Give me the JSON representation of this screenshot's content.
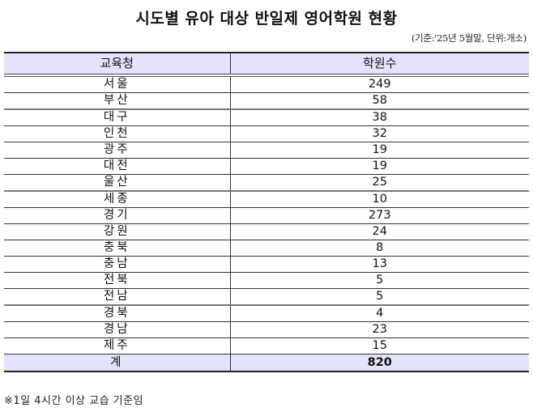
{
  "title": "시도별 유아 대상 반일제 영어학원 현황",
  "subtitle": "(기준:'25년 5월말, 단위:개소)",
  "table": {
    "headers": [
      "교육청",
      "학원수"
    ],
    "rows": [
      {
        "region": "서울",
        "count": "249"
      },
      {
        "region": "부산",
        "count": "58"
      },
      {
        "region": "대구",
        "count": "38"
      },
      {
        "region": "인천",
        "count": "32"
      },
      {
        "region": "광주",
        "count": "19"
      },
      {
        "region": "대전",
        "count": "19"
      },
      {
        "region": "울산",
        "count": "25"
      },
      {
        "region": "세종",
        "count": "10"
      },
      {
        "region": "경기",
        "count": "273"
      },
      {
        "region": "강원",
        "count": "24"
      },
      {
        "region": "충북",
        "count": "8"
      },
      {
        "region": "충남",
        "count": "13"
      },
      {
        "region": "전북",
        "count": "5"
      },
      {
        "region": "전남",
        "count": "5"
      },
      {
        "region": "경북",
        "count": "4"
      },
      {
        "region": "경남",
        "count": "23"
      },
      {
        "region": "제주",
        "count": "15"
      }
    ],
    "total": {
      "label": "계",
      "count": "820"
    }
  },
  "footnote": "※1일 4시간 이상 교습 기준임",
  "colors": {
    "header_bg": "#e3e3fb",
    "total_bg": "#e3e3fb",
    "text": "#111111"
  }
}
